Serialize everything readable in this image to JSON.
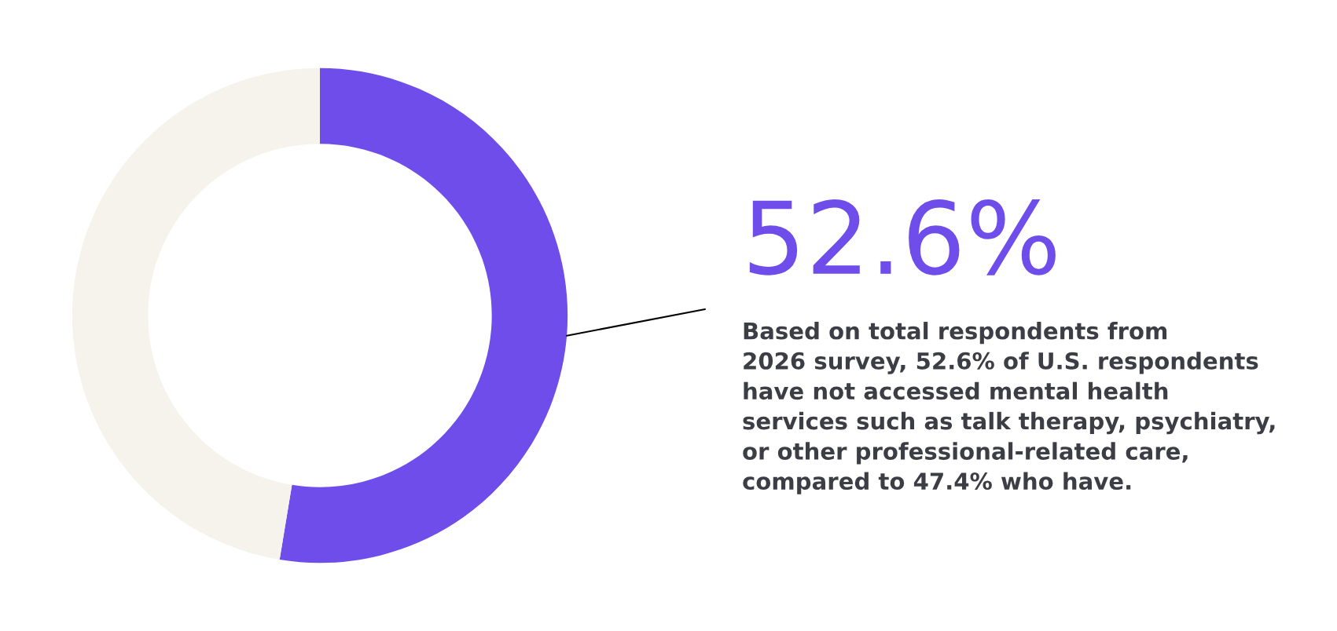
{
  "chart_data": {
    "type": "donut",
    "categories": [
      null,
      null
    ],
    "values": [
      52.6,
      47.4
    ],
    "colors": [
      "#6e4deb",
      "#f6f3ed"
    ],
    "value_labels": [
      "52.6%",
      null
    ],
    "annotations": [
      "Based on total respondents from\n2026 survey, 52.6% of U.S. respondents\nhave not accessed mental health\nservices such as talk therapy, psychiatry,\nor other professional-related care,\ncompared to 47.4% who have."
    ]
  }
}
